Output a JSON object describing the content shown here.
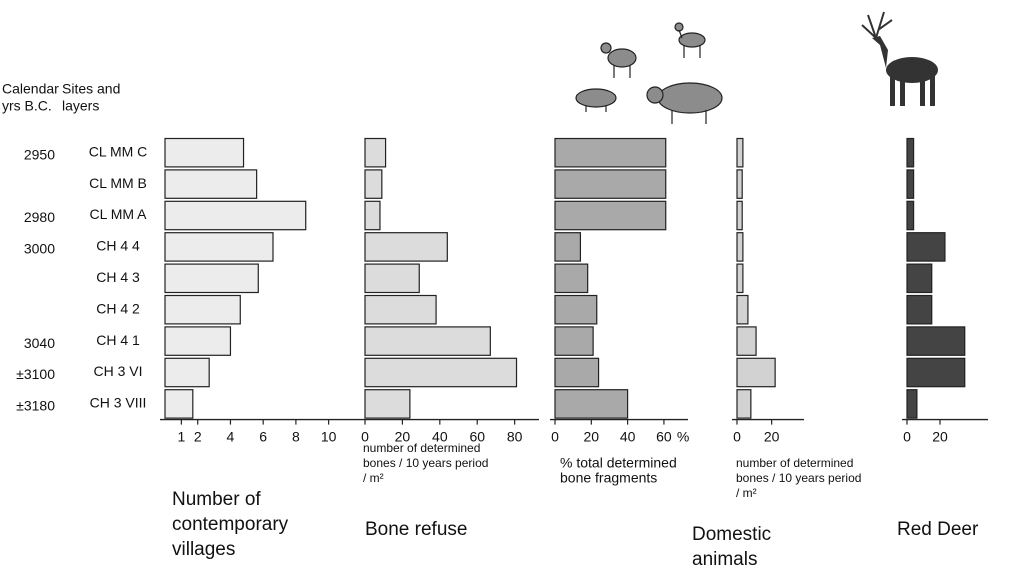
{
  "header": {
    "years_label": [
      "Calendar",
      "yrs B.C."
    ],
    "sites_label": [
      "Sites and",
      "layers"
    ]
  },
  "years": [
    "2950",
    null,
    "2980",
    "3000",
    null,
    null,
    "3040",
    "±3100",
    "±3180"
  ],
  "sites": [
    "CL MM C",
    "CL MM B",
    "CL MM A",
    "CH 4 4",
    "CH 4 3",
    "CH 4 2",
    "CH 4 1",
    "CH 3 VI",
    "CH 3 VIII"
  ],
  "chart_data": [
    {
      "type": "bar",
      "orientation": "horizontal",
      "title": [
        "Number of",
        "contemporary",
        "villages"
      ],
      "color": "#ececec",
      "values": [
        4.8,
        5.6,
        8.6,
        6.6,
        5.7,
        4.6,
        4.0,
        2.7,
        1.7
      ],
      "xlim": [
        0,
        11
      ],
      "xticks": [
        1,
        2,
        4,
        6,
        8,
        10
      ]
    },
    {
      "type": "bar",
      "orientation": "horizontal",
      "title": [
        "Bone refuse"
      ],
      "x_label": [
        "number of determined",
        "bones / 10 years period",
        " / m²"
      ],
      "color": "#dcdcdc",
      "values": [
        11,
        9,
        8,
        44,
        29,
        38,
        67,
        81,
        24
      ],
      "xlim": [
        0,
        85
      ],
      "xticks": [
        0,
        20,
        40,
        60,
        80
      ]
    },
    {
      "type": "bar",
      "orientation": "horizontal",
      "title": [
        "Domestic",
        "animals"
      ],
      "x_label": [
        "% total determined",
        "bone fragments"
      ],
      "x_unit": "%",
      "color": "#a9a9a9",
      "values": [
        61,
        61,
        61,
        14,
        18,
        23,
        21,
        24,
        40
      ],
      "xlim": [
        0,
        65
      ],
      "xticks": [
        0,
        20,
        40,
        60
      ]
    },
    {
      "type": "bar",
      "orientation": "horizontal",
      "x_label": [
        "number of determined",
        "bones / 10 years period",
        " / m²"
      ],
      "color": "#d2d2d2",
      "values": [
        3.4,
        3,
        3,
        3.4,
        3.4,
        6.3,
        11,
        22,
        8
      ],
      "xlim": [
        0,
        30
      ],
      "xticks": [
        0,
        20
      ]
    },
    {
      "type": "bar",
      "orientation": "horizontal",
      "title": [
        "Red Deer"
      ],
      "color": "#444444",
      "values": [
        4,
        4,
        4,
        23,
        15,
        15,
        35,
        35,
        6
      ],
      "xlim": [
        0,
        40
      ],
      "xticks": [
        0,
        20
      ]
    }
  ]
}
